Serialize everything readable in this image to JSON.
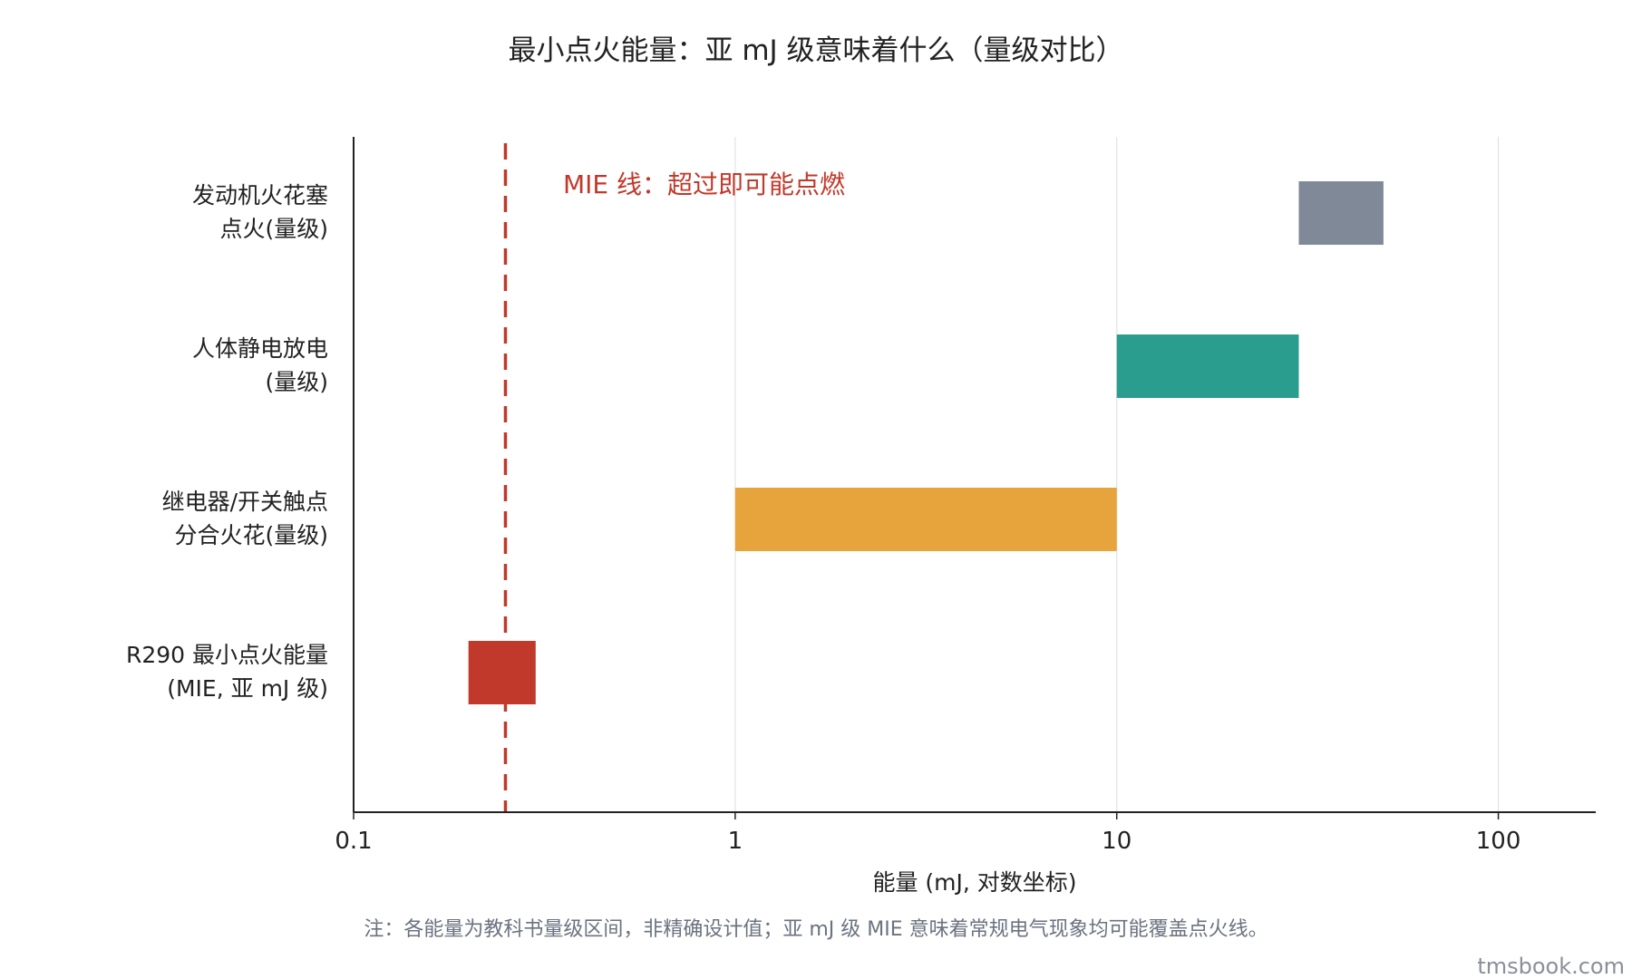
{
  "chart_data": {
    "type": "bar",
    "orientation": "horizontal-range",
    "title": "最小点火能量：亚 mJ 级意味着什么（量级对比）",
    "xlabel": "能量 (mJ, 对数坐标)",
    "x_scale": "log",
    "xlim": [
      0.1,
      180
    ],
    "x_ticks": [
      "0.1",
      "1",
      "10",
      "100"
    ],
    "grid": "vertical",
    "bars": [
      {
        "label_lines": [
          "发动机火花塞",
          "点火(量级)"
        ],
        "start": 30,
        "end": 50,
        "color": "#808997"
      },
      {
        "label_lines": [
          "人体静电放电",
          "(量级)"
        ],
        "start": 10,
        "end": 30,
        "color": "#2a9d8f"
      },
      {
        "label_lines": [
          "继电器/开关触点",
          "分合火花(量级)"
        ],
        "start": 1,
        "end": 10,
        "color": "#e8a43c"
      },
      {
        "label_lines": [
          "R290 最小点火能量",
          "(MIE, 亚 mJ 级)"
        ],
        "start": 0.2,
        "end": 0.3,
        "color": "#c0392b"
      }
    ],
    "reference_line": {
      "x": 0.25,
      "color": "#c0392b",
      "style": "dashed",
      "label": "MIE 线：超过即可能点燃"
    }
  },
  "footnote": "注：各能量为教科书量级区间，非精确设计值；亚 mJ 级 MIE 意味着常规电气现象均可能覆盖点火线。",
  "watermark": "tmsbook.com"
}
